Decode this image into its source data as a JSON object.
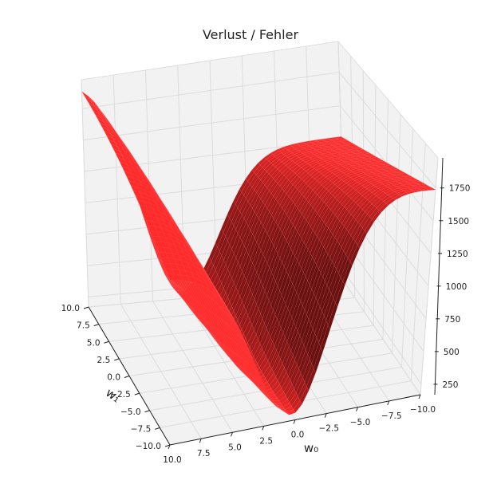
{
  "chart_data": {
    "type": "surface3d",
    "title": "Verlust / Fehler",
    "xlabel": "w₀",
    "ylabel": "w₁",
    "zlabel": "",
    "x_ticks": [
      "10.0",
      "7.5",
      "5.0",
      "2.5",
      "0.0",
      "−2.5",
      "−5.0",
      "−7.5",
      "−10.0"
    ],
    "y_ticks": [
      "10.0",
      "7.5",
      "5.0",
      "2.5",
      "0.0",
      "−2.5",
      "−5.0",
      "−7.5",
      "−10.0"
    ],
    "z_ticks": [
      "250",
      "500",
      "750",
      "1000",
      "1250",
      "1500",
      "1750"
    ],
    "xlim": [
      -10,
      10
    ],
    "ylim": [
      -10,
      10
    ],
    "zlim": [
      170,
      1980
    ],
    "grid": true,
    "surface_color": "#ff2a2a",
    "surface_dark_color": "#6b1111",
    "pane_color": "#f2f2f2",
    "surface_samples": [
      {
        "w0": -10,
        "w1": 10,
        "loss": 1980
      },
      {
        "w0": 10,
        "w1": -10,
        "loss": 1740
      },
      {
        "w0": 1.4,
        "w1": -1.1,
        "loss": 170
      },
      {
        "w0": 0.3,
        "w1": -2.7,
        "loss": 1270
      }
    ]
  }
}
